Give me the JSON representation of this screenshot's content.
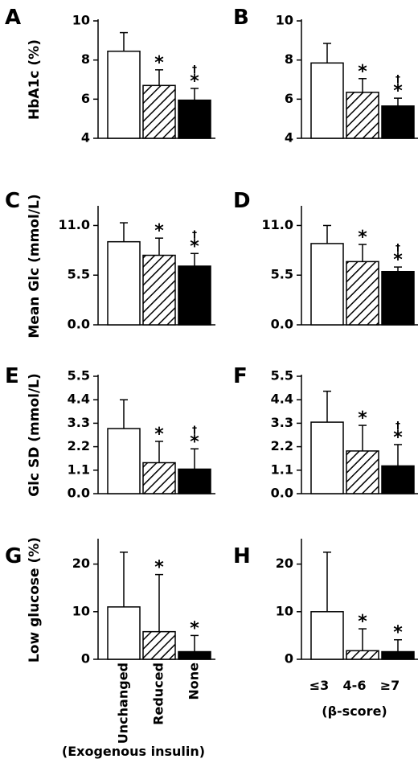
{
  "x_categories_left": [
    "Unchanged",
    "Reduced",
    "None"
  ],
  "x_categories_right": [
    "≤3",
    "4-6",
    "≥7"
  ],
  "x_group_label_left": "(Exogenous insulin)",
  "x_group_label_right": "(β-score)",
  "chart_data": [
    {
      "panel": "A",
      "type": "bar",
      "ylabel": "HbA1c (%)",
      "ylim": [
        4,
        10
      ],
      "yticks": [
        "4",
        "6",
        "8",
        "10"
      ],
      "ytick_values": [
        4,
        6,
        8,
        10
      ],
      "values": [
        8.45,
        6.7,
        5.95
      ],
      "errors": [
        0.95,
        0.8,
        0.6
      ],
      "marks": [
        [],
        [
          "*"
        ],
        [
          "*",
          "†"
        ]
      ]
    },
    {
      "panel": "B",
      "type": "bar",
      "ylabel": "",
      "ylim": [
        4,
        10
      ],
      "yticks": [
        "4",
        "6",
        "8",
        "10"
      ],
      "ytick_values": [
        4,
        6,
        8,
        10
      ],
      "values": [
        7.85,
        6.35,
        5.65
      ],
      "errors": [
        1.0,
        0.7,
        0.4
      ],
      "marks": [
        [],
        [
          "*"
        ],
        [
          "*",
          "†"
        ]
      ]
    },
    {
      "panel": "C",
      "type": "bar",
      "ylabel": "Mean Glc (mmol/L)",
      "ylim": [
        0,
        13
      ],
      "yticks": [
        "0.0",
        "5.5",
        "11.0"
      ],
      "ytick_values": [
        0,
        5.5,
        11
      ],
      "values": [
        9.2,
        7.7,
        6.5
      ],
      "errors": [
        2.1,
        1.9,
        1.4
      ],
      "marks": [
        [],
        [
          "*"
        ],
        [
          "*",
          "†"
        ]
      ]
    },
    {
      "panel": "D",
      "type": "bar",
      "ylabel": "",
      "ylim": [
        0,
        13
      ],
      "yticks": [
        "0.0",
        "5.5",
        "11.0"
      ],
      "ytick_values": [
        0,
        5.5,
        11
      ],
      "values": [
        9.0,
        7.0,
        5.9
      ],
      "errors": [
        2.0,
        1.9,
        0.5
      ],
      "marks": [
        [],
        [
          "*"
        ],
        [
          "*",
          "†"
        ]
      ]
    },
    {
      "panel": "E",
      "type": "bar",
      "ylabel": "Glc SD (mmol/L)",
      "ylim": [
        0,
        5.5
      ],
      "yticks": [
        "0.0",
        "1.1",
        "2.2",
        "3.3",
        "4.4",
        "5.5"
      ],
      "ytick_values": [
        0,
        1.1,
        2.2,
        3.3,
        4.4,
        5.5
      ],
      "values": [
        3.05,
        1.45,
        1.15
      ],
      "errors": [
        1.35,
        1.0,
        0.95
      ],
      "marks": [
        [],
        [
          "*"
        ],
        [
          "*",
          "†"
        ]
      ]
    },
    {
      "panel": "F",
      "type": "bar",
      "ylabel": "",
      "ylim": [
        0,
        5.5
      ],
      "yticks": [
        "0.0",
        "1.1",
        "2.2",
        "3.3",
        "4.4",
        "5.5"
      ],
      "ytick_values": [
        0,
        1.1,
        2.2,
        3.3,
        4.4,
        5.5
      ],
      "values": [
        3.35,
        2.0,
        1.3
      ],
      "errors": [
        1.45,
        1.2,
        1.0
      ],
      "marks": [
        [],
        [
          "*"
        ],
        [
          "*",
          "†"
        ]
      ]
    },
    {
      "panel": "G",
      "type": "bar",
      "ylabel": "Low glucose (%)",
      "ylim": [
        0,
        25
      ],
      "yticks": [
        "0",
        "10",
        "20"
      ],
      "ytick_values": [
        0,
        10,
        20
      ],
      "values": [
        11.0,
        5.8,
        1.6
      ],
      "errors": [
        11.5,
        12.0,
        3.4
      ],
      "marks": [
        [],
        [
          "*"
        ],
        [
          "*"
        ]
      ]
    },
    {
      "panel": "H",
      "type": "bar",
      "ylabel": "",
      "ylim": [
        0,
        25
      ],
      "yticks": [
        "0",
        "10",
        "20"
      ],
      "ytick_values": [
        0,
        10,
        20
      ],
      "values": [
        10.0,
        1.8,
        1.6
      ],
      "errors": [
        12.5,
        4.6,
        2.5
      ],
      "marks": [
        [],
        [
          "*"
        ],
        [
          "*"
        ]
      ]
    }
  ]
}
